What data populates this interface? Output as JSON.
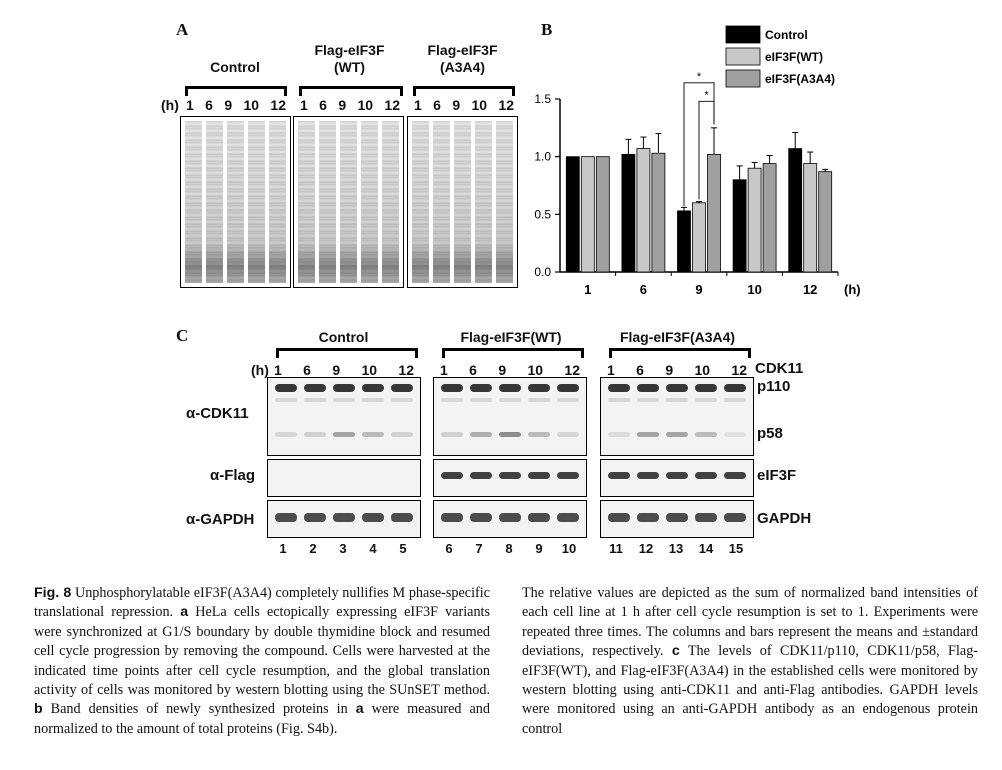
{
  "panels": {
    "a_letter": "A",
    "b_letter": "B",
    "c_letter": "C"
  },
  "panel_a": {
    "groups": [
      {
        "label": "Control"
      },
      {
        "label": "Flag-eIF3F\n(WT)"
      },
      {
        "label": "Flag-eIF3F\n(A3A4)"
      }
    ],
    "hours_label": "(h)",
    "time_points": [
      "1",
      "6",
      "9",
      "10",
      "12"
    ]
  },
  "chart_data": {
    "type": "bar",
    "categories": [
      "1",
      "6",
      "9",
      "10",
      "12"
    ],
    "xlabel": "(h)",
    "ylabel": "",
    "ylim": [
      0,
      1.5
    ],
    "yticks": [
      "0.0",
      "0.5",
      "1.0",
      "1.5"
    ],
    "legend_position": "top-right",
    "series": [
      {
        "name": "Control",
        "color": "#000000",
        "values": [
          1.0,
          1.02,
          0.53,
          0.8,
          1.07
        ],
        "errors": [
          0.0,
          0.13,
          0.03,
          0.12,
          0.14
        ]
      },
      {
        "name": "eIF3F(WT)",
        "color": "#c8c8c8",
        "values": [
          1.0,
          1.07,
          0.6,
          0.9,
          0.94
        ],
        "errors": [
          0.0,
          0.1,
          0.01,
          0.05,
          0.1
        ]
      },
      {
        "name": "eIF3F(A3A4)",
        "color": "#a0a0a0",
        "values": [
          1.0,
          1.03,
          1.02,
          0.94,
          0.87
        ],
        "errors": [
          0.0,
          0.17,
          0.23,
          0.07,
          0.02
        ]
      }
    ],
    "significance": [
      "*",
      "*"
    ]
  },
  "panel_c": {
    "groups": [
      "Control",
      "Flag-eIF3F(WT)",
      "Flag-eIF3F(A3A4)"
    ],
    "hours_label": "(h)",
    "time_points": [
      "1",
      "6",
      "9",
      "10",
      "12"
    ],
    "cdk_label": "CDK11",
    "antibodies": [
      "α-CDK11",
      "α-Flag",
      "α-GAPDH"
    ],
    "right_labels": [
      "p110",
      "p58",
      "eIF3F",
      "GAPDH"
    ],
    "lane_numbers": [
      [
        "1",
        "2",
        "3",
        "4",
        "5"
      ],
      [
        "6",
        "7",
        "8",
        "9",
        "10"
      ],
      [
        "11",
        "12",
        "13",
        "14",
        "15"
      ]
    ]
  },
  "caption_left": {
    "fig_label": "Fig. 8",
    "text_1": " Unphosphorylatable eIF3F(A3A4) completely nullifies M phase-specific translational repression. ",
    "a": "a",
    "text_2": " HeLa cells ectopically expressing eIF3F variants were synchronized at G1/S boundary by double thymidine block and resumed cell cycle progression by removing the compound. Cells were harvested at the indicated time points after cell cycle resumption, and the global translation activity of cells was monitored by western blotting using the SUnSET method. ",
    "b": "b",
    "text_3": " Band densities of newly synthesized proteins in ",
    "a2": "a",
    "text_4": " were measured and normalized to the amount of total proteins (Fig. S4b)."
  },
  "caption_right": {
    "text_1": "The relative values are depicted as the sum of normalized band intensities of each cell line at 1 h after cell cycle resumption is set to 1. Experiments were repeated three times. The columns and bars represent the means and ±standard deviations, respectively. ",
    "c": "c",
    "text_2": " The levels of CDK11/p110, CDK11/p58, Flag-eIF3F(WT), and Flag-eIF3F(A3A4) in the established cells were monitored by western blotting using anti-CDK11 and anti-Flag antibodies. GAPDH levels were monitored using an anti-GAPDH antibody as an endogenous protein control"
  }
}
